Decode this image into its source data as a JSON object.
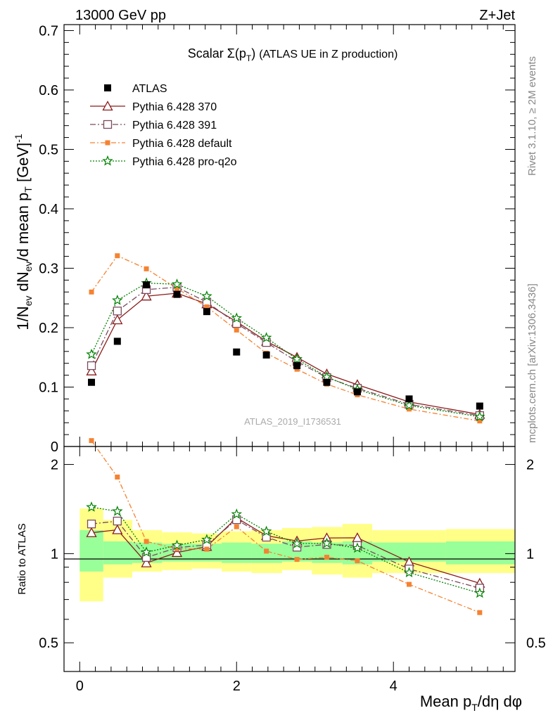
{
  "header": {
    "energy_label": "13000 GeV pp",
    "process_label": "Z+Jet"
  },
  "side_text": {
    "rivet": "Rivet 3.1.10, ≥ 2M events",
    "mcplots": "mcplots.cern.ch [arXiv:1306.3436]"
  },
  "chart_data": {
    "type": "line",
    "title": "Scalar Σ(p_T) (ATLAS UE in Z production)",
    "watermark": "ATLAS_2019_I1736531",
    "xlabel": "Mean p_T/dη dφ",
    "ylabel": "1/N_ev dN_ev/d mean p_T [GeV]^-1",
    "ratio_ylabel": "Ratio to ATLAS",
    "xlim": [
      -0.2,
      5.55
    ],
    "ylim": [
      0,
      0.71
    ],
    "ratio_ylim": [
      0.4,
      2.3
    ],
    "ratio_scale": "log",
    "xticks": [
      0,
      2,
      4
    ],
    "yticks": [
      0.1,
      0.2,
      0.3,
      0.4,
      0.5,
      0.6,
      0.7
    ],
    "ytick_zero": "0",
    "ratio_ticks": [
      0.5,
      1,
      2
    ],
    "legend_position": "top-left",
    "x": [
      0.15,
      0.48,
      0.85,
      1.24,
      1.62,
      2.0,
      2.38,
      2.77,
      3.15,
      3.54,
      4.2,
      5.1
    ],
    "data": {
      "name": "ATLAS",
      "color": "#000000",
      "values": [
        0.108,
        0.177,
        0.272,
        0.256,
        0.227,
        0.159,
        0.154,
        0.136,
        0.108,
        0.092,
        0.08,
        0.068
      ],
      "band_edges": [
        0.0,
        0.3,
        0.67,
        1.05,
        1.43,
        1.81,
        2.19,
        2.58,
        2.96,
        3.35,
        3.73,
        4.67,
        5.55
      ],
      "stat_band": [
        [
          0.87,
          1.2
        ],
        [
          0.92,
          1.1
        ],
        [
          0.93,
          1.09
        ],
        [
          0.94,
          1.08
        ],
        [
          0.94,
          1.08
        ],
        [
          0.93,
          1.09
        ],
        [
          0.93,
          1.08
        ],
        [
          0.94,
          1.1
        ],
        [
          0.93,
          1.09
        ],
        [
          0.92,
          1.1
        ],
        [
          0.94,
          1.09
        ],
        [
          0.92,
          1.1
        ]
      ],
      "total_band": [
        [
          0.69,
          1.42
        ],
        [
          0.83,
          1.3
        ],
        [
          0.87,
          1.2
        ],
        [
          0.88,
          1.18
        ],
        [
          0.89,
          1.17
        ],
        [
          0.87,
          1.19
        ],
        [
          0.86,
          1.2
        ],
        [
          0.88,
          1.22
        ],
        [
          0.85,
          1.23
        ],
        [
          0.83,
          1.26
        ],
        [
          0.86,
          1.2
        ],
        [
          0.86,
          1.21
        ]
      ]
    },
    "series": [
      {
        "name": "Pythia 6.428 370",
        "color": "#8b1a1a",
        "marker": "triangle",
        "dash": "",
        "values": [
          0.127,
          0.213,
          0.253,
          0.258,
          0.24,
          0.21,
          0.177,
          0.15,
          0.122,
          0.104,
          0.075,
          0.054
        ]
      },
      {
        "name": "Pythia 6.428 391",
        "color": "#7b4a5e",
        "marker": "square",
        "dash": "8,3,2,3",
        "values": [
          0.136,
          0.228,
          0.264,
          0.268,
          0.243,
          0.207,
          0.175,
          0.143,
          0.116,
          0.098,
          0.071,
          0.052
        ]
      },
      {
        "name": "Pythia 6.428 default",
        "color": "#f58231",
        "marker": "filledsquare",
        "dash": "7,3,2,3",
        "values": [
          0.26,
          0.321,
          0.299,
          0.266,
          0.235,
          0.196,
          0.157,
          0.13,
          0.105,
          0.087,
          0.063,
          0.043
        ]
      },
      {
        "name": "Pythia 6.428 pro-q2o",
        "color": "#008000",
        "marker": "star",
        "dash": "2,2",
        "values": [
          0.155,
          0.246,
          0.275,
          0.273,
          0.253,
          0.216,
          0.183,
          0.147,
          0.117,
          0.096,
          0.069,
          0.05
        ]
      }
    ]
  }
}
